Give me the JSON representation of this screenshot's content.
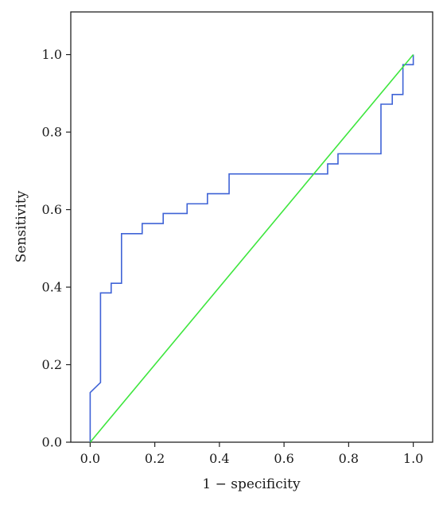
{
  "chart_data": {
    "type": "line",
    "title": "",
    "xlabel": "1 − specificity",
    "ylabel": "Sensitivity",
    "xlim": [
      -0.06,
      1.06
    ],
    "ylim": [
      0.0,
      1.11
    ],
    "xticks": [
      0.0,
      0.2,
      0.4,
      0.6,
      0.8,
      1.0
    ],
    "yticks": [
      0.0,
      0.2,
      0.4,
      0.6,
      0.8,
      1.0
    ],
    "xtick_labels": [
      "0.0",
      "0.2",
      "0.4",
      "0.6",
      "0.8",
      "1.0"
    ],
    "ytick_labels": [
      "0.0",
      "0.2",
      "0.4",
      "0.6",
      "0.8",
      "1.0"
    ],
    "grid": false,
    "legend": "none",
    "series": [
      {
        "style": "step",
        "color": "#3f63d6",
        "x": [
          0.0,
          0.0,
          0.032,
          0.032,
          0.065,
          0.065,
          0.097,
          0.097,
          0.161,
          0.161,
          0.226,
          0.226,
          0.3,
          0.3,
          0.363,
          0.363,
          0.43,
          0.43,
          0.735,
          0.735,
          0.767,
          0.767,
          0.9,
          0.9,
          0.935,
          0.935,
          0.968,
          0.968,
          1.0,
          1.0
        ],
        "y": [
          0.0,
          0.128,
          0.154,
          0.385,
          0.385,
          0.41,
          0.41,
          0.538,
          0.538,
          0.564,
          0.564,
          0.59,
          0.59,
          0.615,
          0.615,
          0.641,
          0.641,
          0.692,
          0.692,
          0.718,
          0.718,
          0.744,
          0.744,
          0.872,
          0.872,
          0.897,
          0.897,
          0.974,
          0.974,
          1.0
        ]
      },
      {
        "style": "line",
        "color": "#3ee63e",
        "x": [
          0.0,
          1.0
        ],
        "y": [
          0.0,
          1.0
        ]
      }
    ]
  }
}
